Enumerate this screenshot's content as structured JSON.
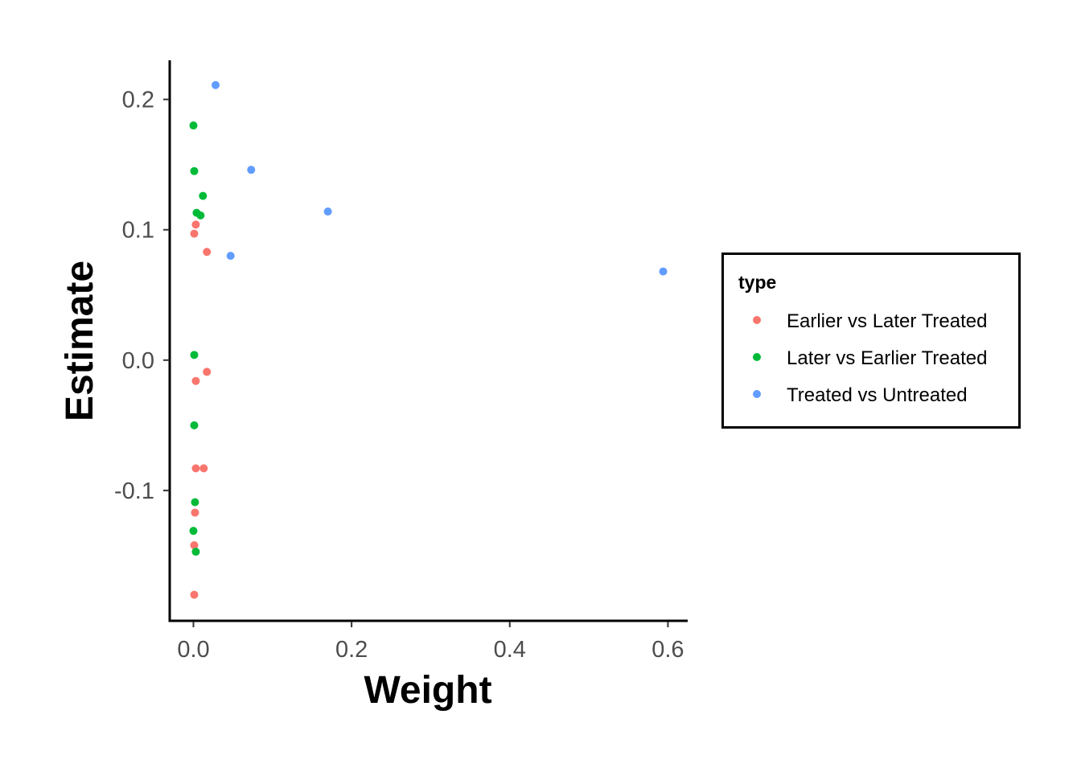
{
  "chart_data": {
    "type": "scatter",
    "title": "",
    "xlabel": "Weight",
    "ylabel": "Estimate",
    "xlim": [
      -0.03,
      0.625
    ],
    "ylim": [
      -0.2,
      0.23
    ],
    "grid": false,
    "x_ticks": [
      0.0,
      0.2,
      0.4,
      0.6
    ],
    "x_tick_labels": [
      "0.0",
      "0.2",
      "0.4",
      "0.6"
    ],
    "y_ticks": [
      -0.1,
      0.0,
      0.1,
      0.2
    ],
    "y_tick_labels": [
      "-0.1",
      "0.0",
      "0.1",
      "0.2"
    ],
    "legend": {
      "title": "type",
      "position": "right"
    },
    "series": [
      {
        "name": "Earlier vs Later Treated",
        "color": "#F8766D",
        "points": [
          {
            "x": 0.003,
            "y": 0.104
          },
          {
            "x": 0.001,
            "y": 0.097
          },
          {
            "x": 0.017,
            "y": 0.083
          },
          {
            "x": 0.017,
            "y": -0.009
          },
          {
            "x": 0.003,
            "y": -0.016
          },
          {
            "x": 0.003,
            "y": -0.083
          },
          {
            "x": 0.013,
            "y": -0.083
          },
          {
            "x": 0.002,
            "y": -0.117
          },
          {
            "x": 0.001,
            "y": -0.142
          },
          {
            "x": 0.001,
            "y": -0.18
          }
        ]
      },
      {
        "name": "Later vs Earlier Treated",
        "color": "#00BA38",
        "points": [
          {
            "x": 0.0,
            "y": 0.18
          },
          {
            "x": 0.001,
            "y": 0.145
          },
          {
            "x": 0.012,
            "y": 0.126
          },
          {
            "x": 0.004,
            "y": 0.113
          },
          {
            "x": 0.009,
            "y": 0.111
          },
          {
            "x": 0.001,
            "y": 0.004
          },
          {
            "x": 0.001,
            "y": -0.05
          },
          {
            "x": 0.002,
            "y": -0.109
          },
          {
            "x": 0.0,
            "y": -0.131
          },
          {
            "x": 0.003,
            "y": -0.147
          }
        ]
      },
      {
        "name": "Treated vs Untreated",
        "color": "#619CFF",
        "points": [
          {
            "x": 0.028,
            "y": 0.211
          },
          {
            "x": 0.073,
            "y": 0.146
          },
          {
            "x": 0.17,
            "y": 0.114
          },
          {
            "x": 0.047,
            "y": 0.08
          },
          {
            "x": 0.594,
            "y": 0.068
          }
        ]
      }
    ]
  }
}
